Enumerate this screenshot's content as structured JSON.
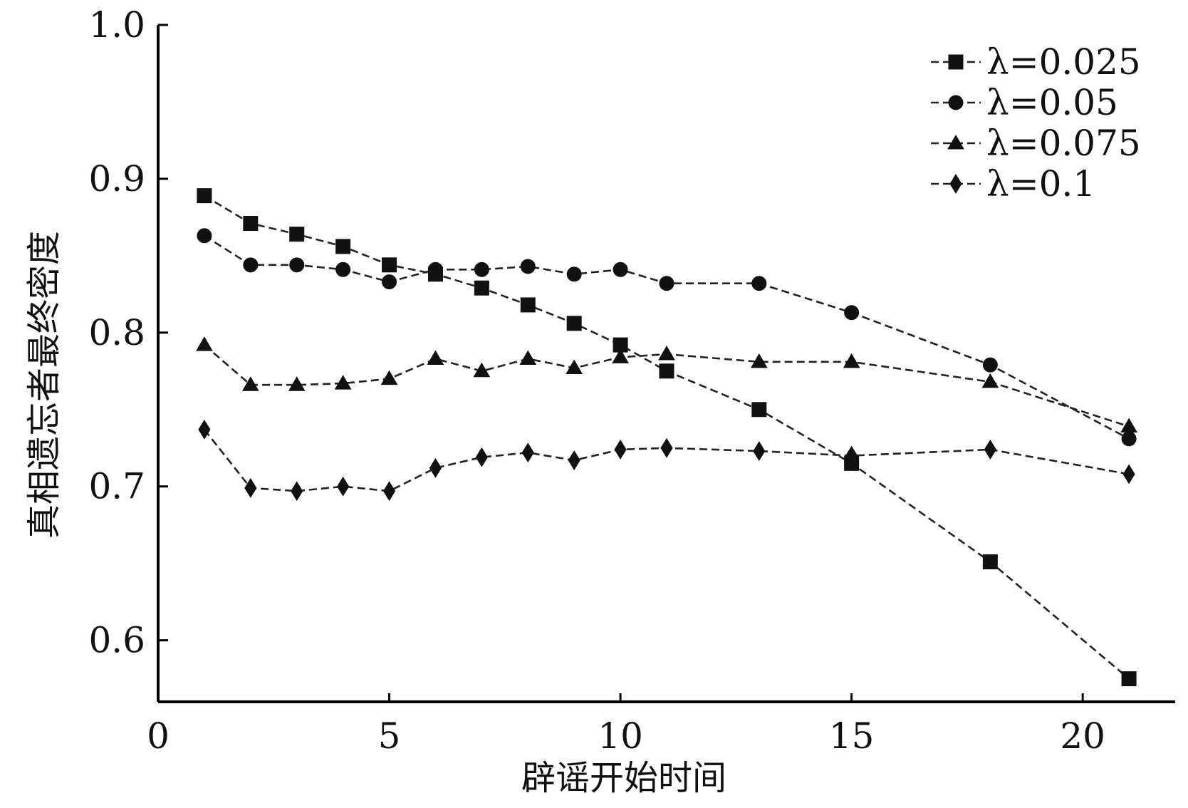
{
  "chart_data": {
    "type": "line",
    "title": "",
    "xlabel": "辟谣开始时间",
    "ylabel": "真相遗忘者最终密度",
    "xlim": [
      0,
      22
    ],
    "ylim": [
      0.56,
      1.0
    ],
    "xticks": [
      0,
      5,
      10,
      15,
      20
    ],
    "xtick_labels": [
      "0",
      "5",
      "10",
      "15",
      "20"
    ],
    "yticks": [
      0.6,
      0.7,
      0.8,
      0.9,
      1.0
    ],
    "ytick_labels": [
      "0.6",
      "0.7",
      "0.8",
      "0.9",
      "1.0"
    ],
    "grid": false,
    "legend_position": "top-right",
    "series": [
      {
        "name": "λ=0.025",
        "marker": "square",
        "x": [
          1,
          2,
          3,
          4,
          5,
          6,
          7,
          8,
          9,
          10,
          11,
          13,
          15,
          18,
          21
        ],
        "y": [
          0.889,
          0.871,
          0.864,
          0.856,
          0.844,
          0.838,
          0.829,
          0.818,
          0.806,
          0.792,
          0.775,
          0.75,
          0.715,
          0.651,
          0.575
        ]
      },
      {
        "name": "λ=0.05",
        "marker": "circle",
        "x": [
          1,
          2,
          3,
          4,
          5,
          6,
          7,
          8,
          9,
          10,
          11,
          13,
          15,
          18,
          21
        ],
        "y": [
          0.863,
          0.844,
          0.844,
          0.841,
          0.833,
          0.841,
          0.841,
          0.843,
          0.838,
          0.841,
          0.832,
          0.832,
          0.813,
          0.779,
          0.731
        ]
      },
      {
        "name": "λ=0.075",
        "marker": "triangle",
        "x": [
          1,
          2,
          3,
          4,
          5,
          6,
          7,
          8,
          9,
          10,
          11,
          13,
          15,
          18,
          21
        ],
        "y": [
          0.792,
          0.766,
          0.766,
          0.767,
          0.77,
          0.783,
          0.775,
          0.783,
          0.777,
          0.784,
          0.786,
          0.781,
          0.781,
          0.768,
          0.739
        ]
      },
      {
        "name": "λ=0.1",
        "marker": "diamond",
        "x": [
          1,
          2,
          3,
          4,
          5,
          6,
          7,
          8,
          9,
          10,
          11,
          13,
          15,
          18,
          21
        ],
        "y": [
          0.737,
          0.699,
          0.697,
          0.7,
          0.697,
          0.712,
          0.719,
          0.722,
          0.717,
          0.724,
          0.725,
          0.723,
          0.72,
          0.724,
          0.708
        ]
      }
    ],
    "colors": {
      "lines": "#222222",
      "markers": "#111111",
      "axes": "#000000"
    }
  }
}
